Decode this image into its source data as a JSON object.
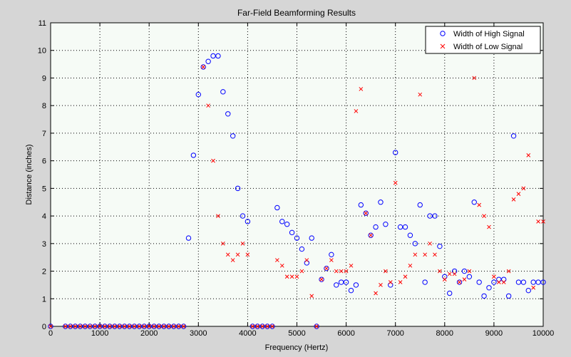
{
  "chart_data": {
    "type": "scatter",
    "title": "Far-Field Beamforming Results",
    "xlabel": "Frequency (Hertz)",
    "ylabel": "Distance (inches)",
    "xlim": [
      0,
      10000
    ],
    "ylim": [
      0,
      11
    ],
    "xticks": [
      0,
      1000,
      2000,
      3000,
      4000,
      5000,
      6000,
      7000,
      8000,
      9000,
      10000
    ],
    "yticks": [
      0,
      1,
      2,
      3,
      4,
      5,
      6,
      7,
      8,
      9,
      10,
      11
    ],
    "grid": true,
    "legend_position": "top-right",
    "series": [
      {
        "name": "Width of High Signal",
        "marker": "circle",
        "color": "#0000ff",
        "x": [
          0,
          300,
          400,
          500,
          600,
          700,
          800,
          900,
          1000,
          1100,
          1200,
          1300,
          1400,
          1500,
          1600,
          1700,
          1800,
          1900,
          2000,
          2100,
          2200,
          2300,
          2400,
          2500,
          2600,
          2700,
          2800,
          2900,
          3000,
          3100,
          3200,
          3300,
          3400,
          3500,
          3600,
          3700,
          3800,
          3900,
          4000,
          4100,
          4200,
          4300,
          4400,
          4500,
          4600,
          4700,
          4800,
          4900,
          5000,
          5100,
          5200,
          5300,
          5400,
          5500,
          5600,
          5700,
          5800,
          5900,
          6000,
          6100,
          6200,
          6300,
          6400,
          6500,
          6600,
          6700,
          6800,
          6900,
          7000,
          7100,
          7200,
          7300,
          7400,
          7500,
          7600,
          7700,
          7800,
          7900,
          8000,
          8100,
          8200,
          8300,
          8400,
          8500,
          8600,
          8700,
          8800,
          8900,
          9000,
          9100,
          9200,
          9300,
          9400,
          9500,
          9600,
          9700,
          9800,
          9900,
          10000
        ],
        "y": [
          0,
          0,
          0,
          0,
          0,
          0,
          0,
          0,
          0,
          0,
          0,
          0,
          0,
          0,
          0,
          0,
          0,
          0,
          0,
          0,
          0,
          0,
          0,
          0,
          0,
          0,
          3.2,
          6.2,
          8.4,
          9.4,
          9.6,
          9.8,
          9.8,
          8.5,
          7.7,
          6.9,
          5.0,
          4.0,
          3.8,
          0,
          0,
          0,
          0,
          0,
          4.3,
          3.8,
          3.7,
          3.4,
          3.2,
          2.8,
          2.3,
          3.2,
          0,
          1.7,
          2.1,
          2.6,
          1.5,
          1.6,
          1.6,
          1.3,
          1.5,
          4.4,
          4.1,
          3.3,
          3.6,
          4.5,
          3.7,
          1.5,
          6.3,
          3.6,
          3.6,
          3.3,
          3.0,
          4.4,
          1.6,
          4.0,
          4.0,
          2.9,
          1.8,
          1.2,
          2.0,
          1.6,
          2.0,
          1.8,
          4.5,
          1.6,
          1.1,
          1.4,
          1.6,
          1.7,
          1.7,
          1.1,
          6.9,
          1.6,
          1.6,
          1.3,
          1.6,
          1.6,
          1.6
        ]
      },
      {
        "name": "Width of Low Signal",
        "marker": "x",
        "color": "#ff0000",
        "x": [
          0,
          300,
          400,
          500,
          600,
          700,
          800,
          900,
          1000,
          1100,
          1200,
          1300,
          1400,
          1500,
          1600,
          1700,
          1800,
          1900,
          2000,
          2100,
          2200,
          2300,
          2400,
          2500,
          2600,
          2700,
          3100,
          3200,
          3300,
          3400,
          3500,
          3600,
          3700,
          3800,
          3900,
          4000,
          4100,
          4200,
          4300,
          4400,
          4500,
          4600,
          4700,
          4800,
          4900,
          5000,
          5100,
          5200,
          5300,
          5400,
          5500,
          5600,
          5700,
          5800,
          5900,
          6000,
          6100,
          6200,
          6300,
          6400,
          6500,
          6600,
          6700,
          6800,
          6900,
          7000,
          7100,
          7200,
          7300,
          7400,
          7500,
          7600,
          7700,
          7800,
          7900,
          8000,
          8100,
          8200,
          8300,
          8400,
          8500,
          8600,
          8700,
          8800,
          8900,
          9000,
          9100,
          9200,
          9300,
          9400,
          9500,
          9600,
          9700,
          9800,
          9900,
          10000
        ],
        "y": [
          0,
          0,
          0,
          0,
          0,
          0,
          0,
          0,
          0,
          0,
          0,
          0,
          0,
          0,
          0,
          0,
          0,
          0,
          0,
          0,
          0,
          0,
          0,
          0,
          0,
          0,
          9.4,
          8.0,
          6.0,
          4.0,
          3.0,
          2.6,
          2.4,
          2.6,
          3.0,
          2.6,
          0,
          0,
          0,
          0,
          0,
          2.4,
          2.2,
          1.8,
          1.8,
          1.8,
          2.0,
          2.4,
          1.1,
          0,
          1.7,
          2.1,
          2.4,
          2.0,
          2.0,
          2.0,
          2.2,
          7.8,
          8.6,
          4.1,
          3.3,
          1.2,
          1.5,
          2.0,
          1.6,
          5.2,
          1.6,
          1.8,
          2.2,
          2.6,
          8.4,
          2.6,
          3.0,
          2.6,
          2.0,
          1.7,
          1.9,
          1.9,
          1.6,
          1.7,
          2.0,
          9.0,
          4.4,
          4.0,
          3.6,
          1.8,
          1.6,
          1.6,
          2.0,
          4.6,
          4.8,
          5.0,
          6.2,
          1.4,
          3.8,
          3.8
        ]
      }
    ]
  }
}
